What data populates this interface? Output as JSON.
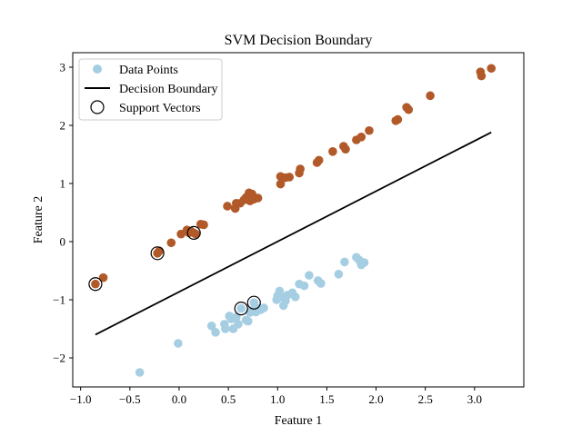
{
  "chart_data": {
    "type": "scatter",
    "title": "SVM Decision Boundary",
    "xlabel": "Feature 1",
    "ylabel": "Feature 2",
    "xlim": [
      -1.08,
      3.5
    ],
    "ylim": [
      -2.5,
      3.25
    ],
    "xticks": [
      -1.0,
      -0.5,
      0.0,
      0.5,
      1.0,
      1.5,
      2.0,
      2.5,
      3.0
    ],
    "xtick_labels": [
      "−1.0",
      "−0.5",
      "0.0",
      "0.5",
      "1.0",
      "1.5",
      "2.0",
      "2.5",
      "3.0"
    ],
    "yticks": [
      -2,
      -1,
      0,
      1,
      2,
      3
    ],
    "ytick_labels": [
      "−2",
      "−1",
      "0",
      "1",
      "2",
      "3"
    ],
    "grid": false,
    "legend": {
      "placement": "top-left",
      "entries": [
        "Data Points",
        "Decision Boundary",
        "Support Vectors"
      ]
    },
    "colors": {
      "class_a": "#a6cee3",
      "class_b": "#b15928",
      "boundary": "#000000"
    },
    "decision_boundary": [
      [
        -0.85,
        -1.6
      ],
      [
        3.17,
        1.88
      ]
    ],
    "series": [
      {
        "class": "class_b",
        "x": [
          -0.85,
          -0.77,
          -0.22,
          -0.2,
          -0.08,
          0.02,
          0.08,
          0.1,
          0.12,
          0.15,
          0.17,
          0.22,
          0.25,
          0.49,
          0.57,
          0.58,
          0.62,
          0.66,
          0.68,
          0.71,
          0.72,
          0.74,
          0.75,
          0.76,
          0.8,
          1.03,
          1.03,
          1.08,
          1.12,
          1.22,
          1.23,
          1.4,
          1.42,
          1.56,
          1.67,
          1.69,
          1.8,
          1.85,
          1.93,
          2.2,
          2.22,
          2.31,
          2.33,
          2.55,
          3.06,
          3.07,
          3.17
        ],
        "y": [
          -0.73,
          -0.62,
          -0.2,
          -0.16,
          -0.02,
          0.13,
          0.2,
          0.15,
          0.18,
          0.15,
          0.13,
          0.3,
          0.29,
          0.61,
          0.57,
          0.66,
          0.66,
          0.72,
          0.76,
          0.84,
          0.7,
          0.82,
          0.78,
          0.73,
          0.75,
          1.12,
          0.99,
          1.1,
          1.11,
          1.18,
          1.25,
          1.36,
          1.4,
          1.55,
          1.64,
          1.59,
          1.75,
          1.8,
          1.91,
          2.08,
          2.1,
          2.31,
          2.27,
          2.51,
          2.92,
          2.85,
          2.98
        ]
      },
      {
        "class": "class_a",
        "x": [
          -0.4,
          -0.01,
          0.33,
          0.37,
          0.46,
          0.47,
          0.51,
          0.53,
          0.55,
          0.58,
          0.6,
          0.63,
          0.68,
          0.7,
          0.72,
          0.74,
          0.76,
          0.78,
          0.81,
          0.83,
          0.86,
          0.99,
          1.0,
          1.02,
          1.03,
          1.06,
          1.08,
          1.1,
          1.15,
          1.18,
          1.22,
          1.27,
          1.32,
          1.41,
          1.44,
          1.62,
          1.68,
          1.8,
          1.83,
          1.85,
          1.88
        ],
        "y": [
          -2.25,
          -1.75,
          -1.45,
          -1.56,
          -1.42,
          -1.5,
          -1.28,
          -1.33,
          -1.5,
          -1.3,
          -1.42,
          -1.15,
          -1.35,
          -1.37,
          -1.22,
          -1.18,
          -1.05,
          -1.21,
          -1.15,
          -1.17,
          -1.14,
          -1.0,
          -0.93,
          -0.85,
          -0.95,
          -1.1,
          -1.02,
          -0.92,
          -0.88,
          -0.95,
          -0.73,
          -0.76,
          -0.58,
          -0.67,
          -0.72,
          -0.56,
          -0.35,
          -0.27,
          -0.32,
          -0.4,
          -0.36
        ]
      }
    ],
    "support_vectors": [
      [
        -0.85,
        -0.73
      ],
      [
        -0.22,
        -0.2
      ],
      [
        0.15,
        0.15
      ],
      [
        0.63,
        -1.15
      ],
      [
        0.76,
        -1.05
      ]
    ]
  }
}
